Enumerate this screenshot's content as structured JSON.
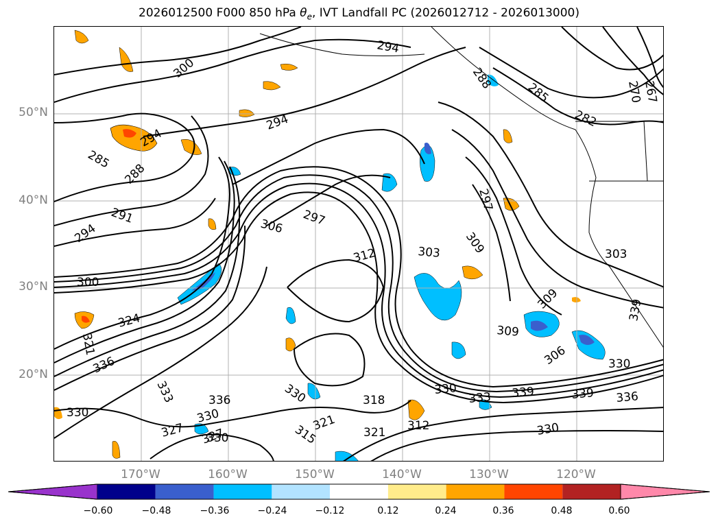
{
  "title": {
    "prefix": "2026012500 F000 850 hPa ",
    "theta_symbol": "θ",
    "theta_subscript": "e",
    "suffix": ", IVT Landfall PC (2026012712 - 2026013000)"
  },
  "map": {
    "lat_labels": [
      "50°N",
      "40°N",
      "30°N",
      "20°N"
    ],
    "lon_labels": [
      "170°W",
      "160°W",
      "150°W",
      "140°W",
      "130°W",
      "120°W"
    ],
    "lat_lines": [
      50,
      40,
      30,
      20
    ],
    "lon_lines": [
      -170,
      -160,
      -150,
      -140,
      -130,
      -120
    ],
    "extent": {
      "lon": [
        -180,
        -110
      ],
      "lat": [
        10,
        60
      ]
    }
  },
  "contour_labels": [
    "294",
    "288",
    "285",
    "282",
    "270",
    "267",
    "300",
    "294",
    "294",
    "285",
    "288",
    "291",
    "294",
    "297",
    "306",
    "297",
    "309",
    "303",
    "312",
    "303",
    "300",
    "324",
    "321",
    "336",
    "309",
    "309",
    "306",
    "330",
    "339",
    "330",
    "333",
    "327",
    "330",
    "336",
    "327",
    "330",
    "330",
    "315",
    "321",
    "318",
    "330",
    "333",
    "339",
    "339",
    "336",
    "330",
    "321",
    "312"
  ],
  "colorbar": {
    "colors": [
      "#9933cc",
      "#00008b",
      "#3a5fcd",
      "#00bfff",
      "#b2e3ff",
      "#ffffff",
      "#ffec8b",
      "#ffa500",
      "#ff4500",
      "#b22222",
      "#ff88aa"
    ],
    "tick_labels": [
      "−0.60",
      "−0.48",
      "−0.36",
      "−0.24",
      "−0.12",
      "0.12",
      "0.24",
      "0.36",
      "0.48",
      "0.60"
    ]
  }
}
